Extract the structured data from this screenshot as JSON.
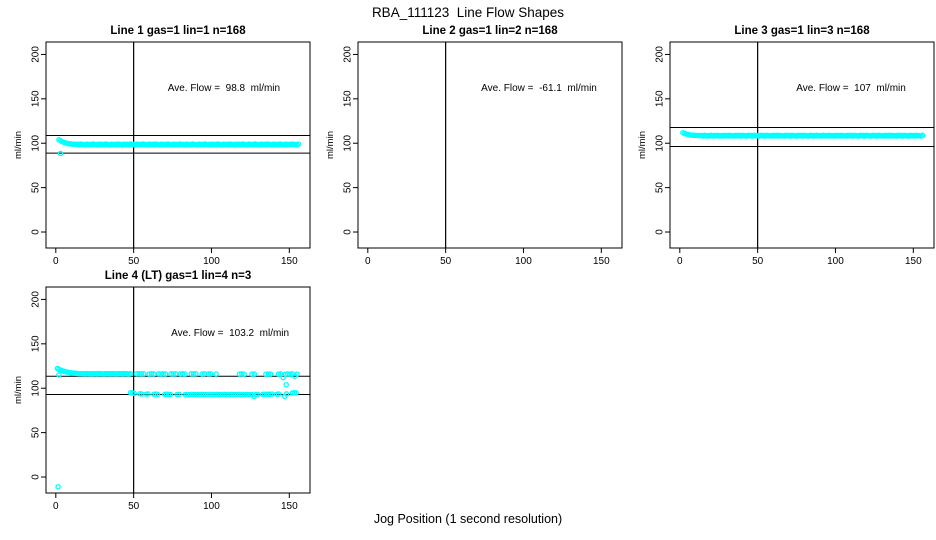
{
  "page": {
    "main_title": "RBA_111123  Line Flow Shapes",
    "shared_xlabel": "Jog Position (1 second resolution)",
    "point_color": "#00FFFF",
    "line_color": "#000000",
    "background": "#ffffff"
  },
  "chart_data": [
    {
      "type": "scatter",
      "title": "Line 1 gas=1 lin=1 n=168",
      "ylabel": "ml/min",
      "annotation": "Ave. Flow =  98.8  ml/min",
      "ave_flow": 98.8,
      "n": 168,
      "annotation_x": 108,
      "annotation_y": 159,
      "xlim": [
        -6.3,
        163.3
      ],
      "ylim": [
        -18,
        214
      ],
      "xticks": [
        0,
        50,
        100,
        150
      ],
      "yticks": [
        0,
        50,
        100,
        150,
        200
      ],
      "vline_x": 50,
      "hlines": [
        108.7,
        88.9
      ],
      "series": [
        {
          "name": "flow-band",
          "x_start": 2,
          "x_step": 1,
          "y": [
            103.9,
            102.8,
            101.9,
            101.1,
            100.5,
            100.0,
            99.6,
            99.3,
            99.1,
            98.95,
            98.85,
            98.8,
            98.9,
            98.2,
            99.1,
            98.4,
            98.7,
            98.1,
            99.0,
            98.3,
            98.9,
            98.2,
            99.1,
            98.4,
            98.7,
            98.1,
            99.0,
            98.3,
            98.9,
            98.2,
            99.1,
            98.4,
            98.7,
            98.1,
            99.0,
            98.3,
            98.9,
            98.2,
            99.1,
            98.4,
            98.7,
            98.1,
            99.0,
            98.3,
            98.9,
            98.2,
            99.1,
            98.4,
            98.7,
            98.1,
            99.0,
            98.3,
            98.9,
            98.2,
            99.1,
            98.4,
            98.7,
            98.1,
            99.0,
            98.3,
            98.9,
            98.2,
            99.1,
            98.4,
            98.7,
            98.1,
            99.0,
            98.3,
            98.9,
            98.2,
            99.1,
            98.4,
            98.7,
            98.1,
            99.0,
            98.3,
            98.9,
            98.2,
            99.1,
            98.4,
            98.7,
            98.1,
            99.0,
            98.3,
            98.9,
            98.2,
            99.1,
            98.4,
            98.7,
            98.1,
            99.0,
            98.3,
            98.9,
            98.2,
            99.1,
            98.4,
            98.7,
            98.1,
            99.0,
            98.3,
            98.9,
            98.2,
            99.1,
            98.4,
            98.7,
            98.1,
            99.0,
            98.3,
            98.9,
            98.2,
            99.1,
            98.4,
            98.7,
            98.1,
            99.0,
            98.3,
            98.9,
            98.2,
            99.1,
            98.4,
            98.7,
            98.1,
            99.0,
            98.3,
            98.9,
            98.2,
            99.1,
            98.4,
            98.7,
            98.1,
            99.0,
            98.3,
            98.9,
            98.2,
            99.1,
            98.4,
            98.7,
            98.1,
            99.0,
            98.3,
            98.9,
            98.2,
            99.1,
            98.4,
            98.7,
            98.1,
            99.0,
            98.3,
            98.9,
            98.2,
            99.1,
            98.4,
            98.7,
            98.1,
            99.0
          ]
        },
        {
          "name": "low-outlier",
          "points": [
            [
              3,
              88.5
            ]
          ]
        }
      ]
    },
    {
      "type": "scatter",
      "title": "Line 2 gas=1 lin=2 n=168",
      "ylabel": "ml/min",
      "annotation": "Ave. Flow =  -61.1  ml/min",
      "ave_flow": -61.1,
      "n": 168,
      "annotation_x": 110,
      "annotation_y": 159,
      "xlim": [
        -6.3,
        163.3
      ],
      "ylim": [
        -18,
        214
      ],
      "xticks": [
        0,
        50,
        100,
        150
      ],
      "yticks": [
        0,
        50,
        100,
        150,
        200
      ],
      "vline_x": 50,
      "hlines": [],
      "series": []
    },
    {
      "type": "scatter",
      "title": "Line 3 gas=1 lin=3 n=168",
      "ylabel": "ml/min",
      "annotation": "Ave. Flow =  107  ml/min",
      "ave_flow": 107,
      "n": 168,
      "annotation_x": 110,
      "annotation_y": 159,
      "xlim": [
        -6.3,
        163.3
      ],
      "ylim": [
        -18,
        214
      ],
      "xticks": [
        0,
        50,
        100,
        150
      ],
      "yticks": [
        0,
        50,
        100,
        150,
        200
      ],
      "vline_x": 50,
      "hlines": [
        117.7,
        96.3
      ],
      "series": [
        {
          "name": "flow-band",
          "x_start": 2,
          "x_step": 1,
          "y": [
            111.8,
            111.1,
            110.5,
            110.0,
            109.6,
            109.3,
            109.0,
            108.9,
            108.8,
            108.7,
            108.65,
            108.6,
            108.8,
            108.1,
            109.0,
            108.3,
            108.6,
            108.0,
            108.9,
            108.2,
            108.8,
            108.1,
            109.0,
            108.3,
            108.6,
            108.0,
            108.9,
            108.2,
            108.8,
            108.1,
            109.0,
            108.3,
            108.6,
            108.0,
            108.9,
            108.2,
            108.8,
            108.1,
            109.0,
            108.3,
            108.6,
            108.0,
            108.9,
            108.2,
            108.8,
            108.1,
            109.0,
            108.3,
            108.6,
            108.0,
            108.9,
            108.2,
            108.8,
            108.1,
            109.0,
            108.3,
            108.6,
            108.0,
            108.9,
            108.2,
            108.8,
            108.1,
            109.0,
            108.3,
            108.6,
            108.0,
            108.9,
            108.2,
            108.8,
            108.1,
            109.0,
            108.3,
            108.6,
            108.0,
            108.9,
            108.2,
            108.8,
            108.1,
            109.0,
            108.3,
            108.6,
            108.0,
            108.9,
            108.2,
            108.8,
            108.1,
            109.0,
            108.3,
            108.6,
            108.0,
            108.9,
            108.2,
            108.8,
            108.1,
            109.0,
            108.3,
            108.6,
            108.0,
            108.9,
            108.2,
            108.8,
            108.1,
            109.0,
            108.3,
            108.6,
            108.0,
            108.9,
            108.2,
            108.8,
            108.1,
            109.0,
            108.3,
            108.6,
            108.0,
            108.9,
            108.2,
            108.8,
            108.1,
            109.0,
            108.3,
            108.6,
            108.0,
            108.9,
            108.2,
            108.8,
            108.1,
            109.0,
            108.3,
            108.6,
            108.0,
            108.9,
            108.2,
            108.8,
            108.1,
            109.0,
            108.3,
            108.6,
            108.0,
            108.9,
            108.2,
            108.8,
            108.1,
            109.0,
            108.3,
            108.6,
            108.0,
            108.9,
            108.2,
            108.8,
            108.1,
            109.0,
            108.3,
            108.6,
            108.0,
            108.9
          ]
        }
      ]
    },
    {
      "type": "scatter",
      "title": "Line 4 (LT) gas=1 lin=4 n=3",
      "ylabel": "ml/min",
      "annotation": "Ave. Flow =  103.2  ml/min",
      "ave_flow": 103.2,
      "n": 3,
      "annotation_x": 112,
      "annotation_y": 159,
      "xlim": [
        -6.3,
        163.3
      ],
      "ylim": [
        -18,
        214
      ],
      "xticks": [
        0,
        50,
        100,
        150
      ],
      "yticks": [
        0,
        50,
        100,
        150,
        200
      ],
      "vline_x": 50,
      "hlines": [
        113.5,
        92.9
      ],
      "series": [
        {
          "name": "upper-band-dense",
          "x_start": 1,
          "x_step": 1,
          "y": [
            122.2,
            121.3,
            120.5,
            119.8,
            119.2,
            118.7,
            118.3,
            117.9,
            117.6,
            117.3,
            117.1,
            116.9,
            116.8,
            116.6,
            116.5,
            116.45,
            116.4,
            116.5,
            116.1,
            116.6,
            116.2,
            116.4,
            116.0,
            116.5,
            116.2,
            116.5,
            116.1,
            116.6,
            116.2,
            116.4,
            116.0,
            116.5,
            116.2,
            116.5,
            116.1,
            116.6,
            116.2,
            116.4,
            116.0,
            116.5,
            116.2,
            116.5,
            116.1,
            116.6,
            116.2,
            116.4,
            116.0,
            116.5
          ]
        },
        {
          "name": "upper-band-sparse",
          "points": [
            [
              52,
              116.2
            ],
            [
              53.5,
              116.4
            ],
            [
              55,
              116.1
            ],
            [
              56.5,
              116.3
            ],
            [
              60,
              116.0
            ],
            [
              61.5,
              116.3
            ],
            [
              63,
              116.1
            ],
            [
              66,
              116.2
            ],
            [
              67.5,
              116.0
            ],
            [
              69,
              116.3
            ],
            [
              70.5,
              116.1
            ],
            [
              74,
              116.2
            ],
            [
              75.5,
              116.0
            ],
            [
              77,
              116.3
            ],
            [
              80,
              116.1
            ],
            [
              81.5,
              116.2
            ],
            [
              83,
              116.0
            ],
            [
              87,
              116.2
            ],
            [
              88.5,
              116.1
            ],
            [
              90,
              116.3
            ],
            [
              94,
              116.0
            ],
            [
              95.5,
              116.2
            ],
            [
              98,
              116.1
            ],
            [
              99.5,
              116.3
            ],
            [
              103,
              116.0
            ],
            [
              118,
              115.9
            ],
            [
              119.5,
              116.1
            ],
            [
              121,
              115.8
            ],
            [
              126,
              115.9
            ],
            [
              127.5,
              116.0
            ],
            [
              135,
              115.8
            ],
            [
              136.5,
              116.0
            ],
            [
              138,
              115.9
            ],
            [
              143,
              115.9
            ],
            [
              144.5,
              116.1
            ],
            [
              146,
              112.0
            ],
            [
              147.5,
              115.8
            ],
            [
              149,
              116.0
            ],
            [
              150.5,
              115.9
            ],
            [
              152,
              116.1
            ],
            [
              153.5,
              113.5
            ],
            [
              155,
              115.9
            ],
            [
              148,
              104.0
            ]
          ]
        },
        {
          "name": "lower-band",
          "points": [
            [
              48,
              95.0
            ],
            [
              49.2,
              94.6
            ],
            [
              50.4,
              94.2
            ],
            [
              54,
              93.8
            ],
            [
              55.2,
              93.5
            ],
            [
              58,
              93.3
            ],
            [
              59.2,
              93.6
            ],
            [
              63,
              93.2
            ],
            [
              64.2,
              93.4
            ],
            [
              65.4,
              93.1
            ],
            [
              70,
              93.0
            ],
            [
              71.2,
              93.3
            ],
            [
              72.4,
              93.1
            ],
            [
              73.6,
              92.9
            ],
            [
              78,
              92.9
            ],
            [
              79.2,
              93.1
            ],
            [
              83,
              92.8
            ],
            [
              84.2,
              93.0
            ],
            [
              85.4,
              92.7
            ],
            [
              86.6,
              92.9
            ],
            [
              87.8,
              92.8
            ],
            [
              89,
              93.0
            ],
            [
              90.2,
              92.7
            ],
            [
              91.4,
              92.9
            ],
            [
              92.6,
              92.8
            ],
            [
              93.8,
              93.0
            ],
            [
              95,
              92.7
            ],
            [
              96.2,
              92.9
            ],
            [
              97.4,
              92.8
            ],
            [
              98.6,
              93.0
            ],
            [
              99.8,
              92.7
            ],
            [
              101,
              92.9
            ],
            [
              102.2,
              92.8
            ],
            [
              103.4,
              93.0
            ],
            [
              104.6,
              92.7
            ],
            [
              105.8,
              92.9
            ],
            [
              107,
              92.8
            ],
            [
              108.2,
              93.0
            ],
            [
              109.4,
              92.7
            ],
            [
              110.6,
              92.9
            ],
            [
              111.8,
              92.8
            ],
            [
              113,
              93.0
            ],
            [
              114.2,
              92.7
            ],
            [
              115.4,
              92.9
            ],
            [
              116.6,
              92.8
            ],
            [
              117.8,
              93.0
            ],
            [
              119,
              92.7
            ],
            [
              120.2,
              92.9
            ],
            [
              121.4,
              92.8
            ],
            [
              122.6,
              93.0
            ],
            [
              123.8,
              92.7
            ],
            [
              125,
              92.9
            ],
            [
              126.2,
              92.8
            ],
            [
              127.4,
              90.8
            ],
            [
              128.6,
              92.9
            ],
            [
              129.8,
              93.1
            ],
            [
              133,
              93.0
            ],
            [
              134.2,
              93.2
            ],
            [
              135.4,
              93.1
            ],
            [
              136.6,
              93.3
            ],
            [
              137.8,
              93.2
            ],
            [
              139,
              93.4
            ],
            [
              142,
              93.3
            ],
            [
              143.2,
              93.5
            ],
            [
              147,
              90.8
            ],
            [
              148.2,
              93.6
            ],
            [
              152,
              94.6
            ],
            [
              153.2,
              94.9
            ],
            [
              154.4,
              94.7
            ]
          ]
        },
        {
          "name": "outliers",
          "points": [
            [
              1.5,
              -11
            ],
            [
              2,
              115.0
            ]
          ]
        }
      ]
    }
  ]
}
